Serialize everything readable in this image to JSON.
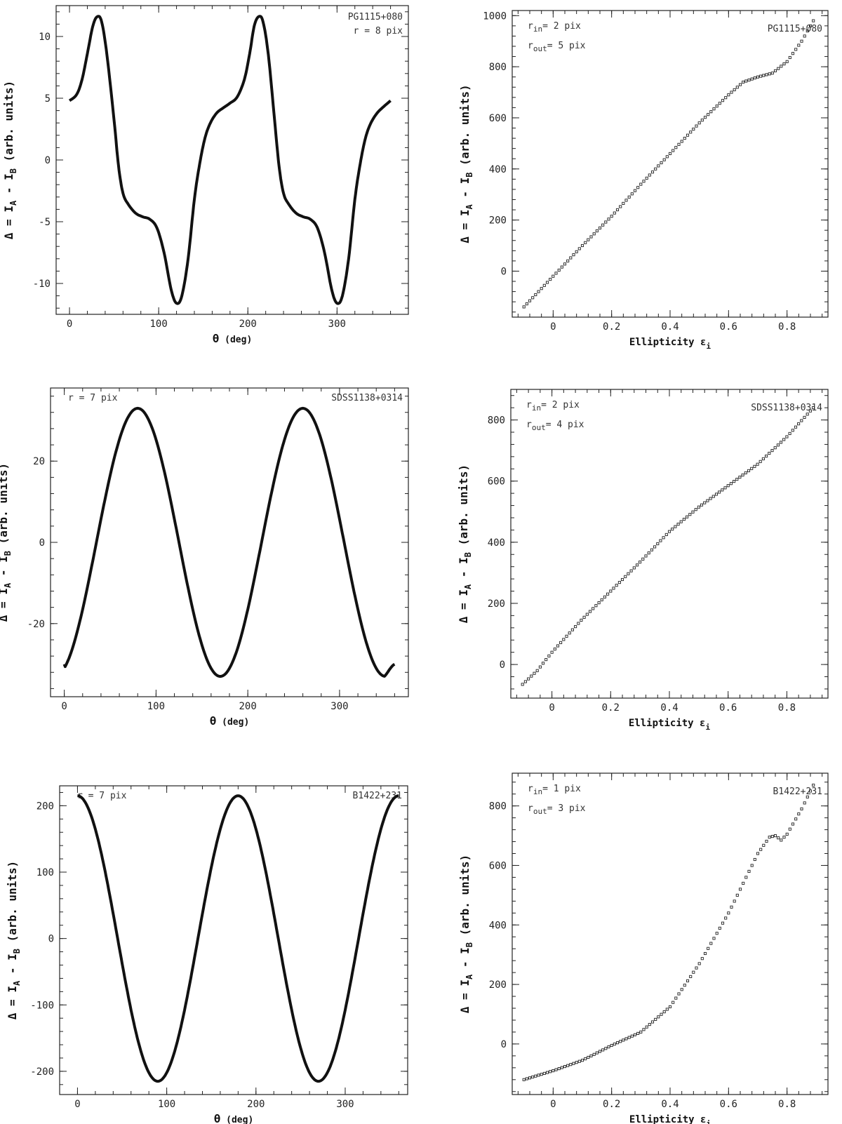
{
  "chart_data": [
    {
      "type": "line",
      "panel": "theta",
      "object_label": "PG1115+080",
      "annotation": "r = 8 pix",
      "xlabel": {
        "main": "θ",
        "unit": "(deg)"
      },
      "ylabel": {
        "prefix": "Δ = I",
        "sub1": "A",
        "mid": " - I",
        "sub2": "B",
        "suffix": " (arb. units)"
      },
      "xlim": [
        -15,
        380
      ],
      "ylim": [
        -12.5,
        12.5
      ],
      "xticks": [
        0,
        100,
        200,
        300
      ],
      "yticks": [
        -10,
        -5,
        0,
        5,
        10
      ],
      "series": [
        {
          "points": [
            [
              0,
              4.8
            ],
            [
              8,
              5.3
            ],
            [
              14,
              6.5
            ],
            [
              20,
              8.6
            ],
            [
              26,
              10.8
            ],
            [
              31,
              11.6
            ],
            [
              36,
              11.2
            ],
            [
              42,
              8.5
            ],
            [
              50,
              3.2
            ],
            [
              55,
              -0.5
            ],
            [
              60,
              -2.7
            ],
            [
              66,
              -3.6
            ],
            [
              74,
              -4.3
            ],
            [
              82,
              -4.6
            ],
            [
              90,
              -4.8
            ],
            [
              98,
              -5.5
            ],
            [
              106,
              -7.5
            ],
            [
              114,
              -10.5
            ],
            [
              120,
              -11.6
            ],
            [
              126,
              -11.0
            ],
            [
              133,
              -8.0
            ],
            [
              140,
              -3.2
            ],
            [
              146,
              -0.3
            ],
            [
              152,
              1.8
            ],
            [
              158,
              3.0
            ],
            [
              165,
              3.8
            ],
            [
              172,
              4.2
            ],
            [
              180,
              4.6
            ],
            [
              188,
              5.1
            ],
            [
              196,
              6.5
            ],
            [
              202,
              8.6
            ],
            [
              207,
              10.8
            ],
            [
              212,
              11.6
            ],
            [
              217,
              11.2
            ],
            [
              223,
              8.5
            ],
            [
              230,
              3.2
            ],
            [
              235,
              -0.5
            ],
            [
              240,
              -2.7
            ],
            [
              246,
              -3.6
            ],
            [
              254,
              -4.3
            ],
            [
              262,
              -4.6
            ],
            [
              270,
              -4.8
            ],
            [
              278,
              -5.5
            ],
            [
              286,
              -7.5
            ],
            [
              294,
              -10.5
            ],
            [
              300,
              -11.6
            ],
            [
              306,
              -11.0
            ],
            [
              313,
              -8.0
            ],
            [
              320,
              -3.2
            ],
            [
              326,
              -0.3
            ],
            [
              332,
              1.8
            ],
            [
              338,
              3.0
            ],
            [
              345,
              3.8
            ],
            [
              352,
              4.3
            ],
            [
              360,
              4.8
            ]
          ]
        }
      ]
    },
    {
      "type": "scatter",
      "panel": "ellipticity",
      "object_label": "PG1115+080",
      "annotation_rin": {
        "base": "r",
        "sub": "in",
        "rest": "= 2 pix"
      },
      "annotation_rout": {
        "base": "r",
        "sub": "out",
        "rest": "= 5 pix"
      },
      "xlabel": {
        "main": "Ellipticity ε",
        "sub": "i"
      },
      "ylabel": {
        "prefix": "Δ = I",
        "sub1": "A",
        "mid": " - I",
        "sub2": "B",
        "suffix": " (arb. units)"
      },
      "xlim": [
        -0.14,
        0.94
      ],
      "ylim": [
        -180,
        1020
      ],
      "xticks": [
        0,
        0.2,
        0.4,
        0.6,
        0.8
      ],
      "xticklabels": [
        "0",
        "0.2",
        "0.4",
        "0.6",
        "0.8"
      ],
      "yticks": [
        0,
        200,
        400,
        600,
        800,
        1000
      ],
      "series": [
        {
          "start": -0.1,
          "step": 0.01,
          "count": 100,
          "curve": [
            [
              -0.1,
              -140
            ],
            [
              0,
              -20
            ],
            [
              0.1,
              100
            ],
            [
              0.2,
              215
            ],
            [
              0.3,
              340
            ],
            [
              0.4,
              460
            ],
            [
              0.5,
              580
            ],
            [
              0.6,
              690
            ],
            [
              0.65,
              740
            ],
            [
              0.7,
              760
            ],
            [
              0.75,
              775
            ],
            [
              0.8,
              820
            ],
            [
              0.85,
              900
            ],
            [
              0.89,
              980
            ]
          ]
        }
      ]
    },
    {
      "type": "line",
      "panel": "theta",
      "object_label": "SDSS1138+0314",
      "annotation": "r = 7 pix",
      "xlabel": {
        "main": "θ",
        "unit": "(deg)"
      },
      "ylabel": {
        "prefix": "Δ = I",
        "sub1": "A",
        "mid": " - I",
        "sub2": "B",
        "suffix": " (arb. units)"
      },
      "xlim": [
        -15,
        375
      ],
      "ylim": [
        -38,
        38
      ],
      "xticks": [
        0,
        100,
        200,
        300
      ],
      "yticks": [
        -20,
        0,
        20
      ],
      "series": [
        {
          "amplitude": 33,
          "center": 0,
          "period": 180,
          "peak_at": 80,
          "x_range": [
            0,
            360
          ],
          "end_value": -30
        }
      ]
    },
    {
      "type": "scatter",
      "panel": "ellipticity",
      "object_label": "SDSS1138+0314",
      "annotation_rin": {
        "base": "r",
        "sub": "in",
        "rest": "= 2 pix"
      },
      "annotation_rout": {
        "base": "r",
        "sub": "out",
        "rest": "= 4 pix"
      },
      "xlabel": {
        "main": "Ellipticity ε",
        "sub": "i"
      },
      "ylabel": {
        "prefix": "Δ = I",
        "sub1": "A",
        "mid": " - I",
        "sub2": "B",
        "suffix": " (arb. units)"
      },
      "xlim": [
        -0.14,
        0.94
      ],
      "ylim": [
        -110,
        900
      ],
      "xticks": [
        0,
        0.2,
        0.4,
        0.6,
        0.8
      ],
      "xticklabels": [
        "0",
        "0.2",
        "0.4",
        "0.6",
        "0.8"
      ],
      "yticks": [
        0,
        200,
        400,
        600,
        800
      ],
      "series": [
        {
          "start": -0.1,
          "step": 0.01,
          "count": 100,
          "curve": [
            [
              -0.1,
              -65
            ],
            [
              -0.05,
              -20
            ],
            [
              0,
              40
            ],
            [
              0.1,
              145
            ],
            [
              0.2,
              240
            ],
            [
              0.3,
              335
            ],
            [
              0.4,
              435
            ],
            [
              0.5,
              515
            ],
            [
              0.6,
              585
            ],
            [
              0.7,
              655
            ],
            [
              0.8,
              745
            ],
            [
              0.89,
              840
            ]
          ]
        }
      ]
    },
    {
      "type": "line",
      "panel": "theta",
      "object_label": "B1422+231",
      "annotation": "r = 7 pix",
      "xlabel": {
        "main": "θ",
        "unit": "(deg)"
      },
      "ylabel": {
        "prefix": "Δ = I",
        "sub1": "A",
        "mid": " - I",
        "sub2": "B",
        "suffix": " (arb. units)"
      },
      "xlim": [
        -20,
        370
      ],
      "ylim": [
        -235,
        230
      ],
      "xticks": [
        0,
        100,
        200,
        300
      ],
      "yticks": [
        -200,
        -100,
        0,
        100,
        200
      ],
      "series": [
        {
          "amplitude": 215,
          "center": 0,
          "period": 180,
          "peak_at": 0,
          "x_range": [
            0,
            360
          ]
        }
      ]
    },
    {
      "type": "scatter",
      "panel": "ellipticity",
      "object_label": "B1422+231",
      "annotation_rin": {
        "base": "r",
        "sub": "in",
        "rest": "= 1 pix"
      },
      "annotation_rout": {
        "base": "r",
        "sub": "out",
        "rest": "= 3 pix"
      },
      "xlabel": {
        "main": "Ellipticity ε",
        "sub": "i"
      },
      "ylabel": {
        "prefix": "Δ = I",
        "sub1": "A",
        "mid": " - I",
        "sub2": "B",
        "suffix": " (arb. units)"
      },
      "xlim": [
        -0.14,
        0.94
      ],
      "ylim": [
        -170,
        910
      ],
      "xticks": [
        0,
        0.2,
        0.4,
        0.6,
        0.8
      ],
      "xticklabels": [
        "0",
        "0.2",
        "0.4",
        "0.6",
        "0.8"
      ],
      "yticks": [
        0,
        200,
        400,
        600,
        800
      ],
      "series": [
        {
          "start": -0.1,
          "step": 0.01,
          "count": 100,
          "curve": [
            [
              -0.1,
              -120
            ],
            [
              0,
              -90
            ],
            [
              0.1,
              -55
            ],
            [
              0.15,
              -30
            ],
            [
              0.2,
              -5
            ],
            [
              0.3,
              40
            ],
            [
              0.4,
              125
            ],
            [
              0.5,
              270
            ],
            [
              0.6,
              440
            ],
            [
              0.65,
              540
            ],
            [
              0.7,
              640
            ],
            [
              0.74,
              695
            ],
            [
              0.76,
              700
            ],
            [
              0.78,
              685
            ],
            [
              0.8,
              705
            ],
            [
              0.85,
              790
            ],
            [
              0.89,
              870
            ]
          ]
        }
      ]
    }
  ]
}
